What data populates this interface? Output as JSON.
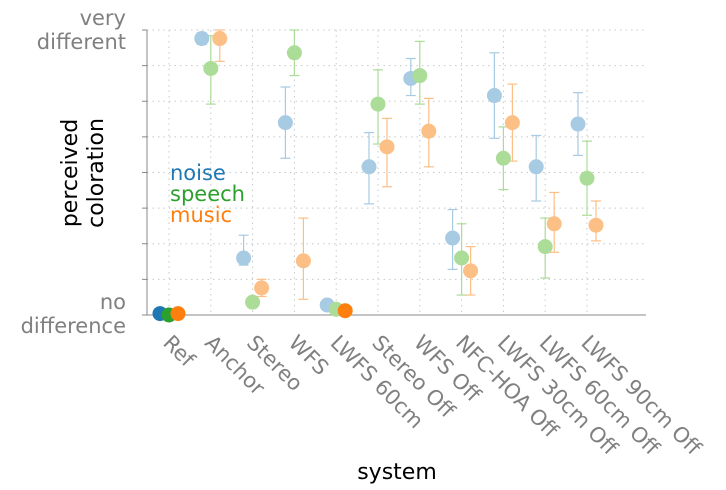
{
  "chart_data": {
    "type": "scatter",
    "xlabel": "system",
    "ylabel": [
      "perceived",
      "coloration"
    ],
    "categories": [
      "Ref",
      "Anchor",
      "Stereo",
      "WFS",
      "LWFS 60cm",
      "Stereo Off",
      "WFS Off",
      "NFC-HOA Off",
      "LWFS 30cm Off",
      "LWFS 60cm Off",
      "LWFS 90cm Off"
    ],
    "ylim": [
      0,
      1
    ],
    "yticks": [
      {
        "value": 1,
        "lines": [
          "very",
          "different"
        ]
      },
      {
        "value": 0,
        "lines": [
          "no",
          "difference"
        ]
      }
    ],
    "grid": true,
    "legend_placement": "left",
    "series": [
      {
        "name": "noise",
        "color": "#1f77b4",
        "light_color": "#a6cbe3",
        "values": [
          0.005,
          0.97,
          0.2,
          0.675,
          0.035,
          0.52,
          0.83,
          0.27,
          0.77,
          0.52,
          0.67
        ],
        "err_low": [
          0,
          0.95,
          0.175,
          0.55,
          0.02,
          0.39,
          0.77,
          0.16,
          0.62,
          0.4,
          0.56
        ],
        "err_high": [
          0.015,
          0.99,
          0.28,
          0.8,
          0.05,
          0.64,
          0.9,
          0.37,
          0.92,
          0.63,
          0.78
        ]
      },
      {
        "name": "speech",
        "color": "#2ca02c",
        "light_color": "#abdc98",
        "values": [
          0,
          0.865,
          0.045,
          0.92,
          0.02,
          0.74,
          0.84,
          0.2,
          0.55,
          0.24,
          0.48
        ],
        "err_low": [
          0,
          0.74,
          0.045,
          0.84,
          0.01,
          0.6,
          0.74,
          0.07,
          0.44,
          0.13,
          0.35
        ],
        "err_high": [
          0,
          0.98,
          0.045,
          1,
          0.03,
          0.86,
          0.96,
          0.32,
          0.66,
          0.34,
          0.61
        ]
      },
      {
        "name": "music",
        "color": "#ff7f0e",
        "light_color": "#fcbf86",
        "values": [
          0.005,
          0.97,
          0.095,
          0.19,
          0.015,
          0.59,
          0.645,
          0.155,
          0.675,
          0.32,
          0.315
        ],
        "err_low": [
          0,
          0.89,
          0.065,
          0.055,
          0.005,
          0.45,
          0.52,
          0.07,
          0.54,
          0.22,
          0.26
        ],
        "err_high": [
          0.015,
          1,
          0.125,
          0.34,
          0.025,
          0.69,
          0.76,
          0.24,
          0.81,
          0.43,
          0.4
        ]
      }
    ]
  }
}
